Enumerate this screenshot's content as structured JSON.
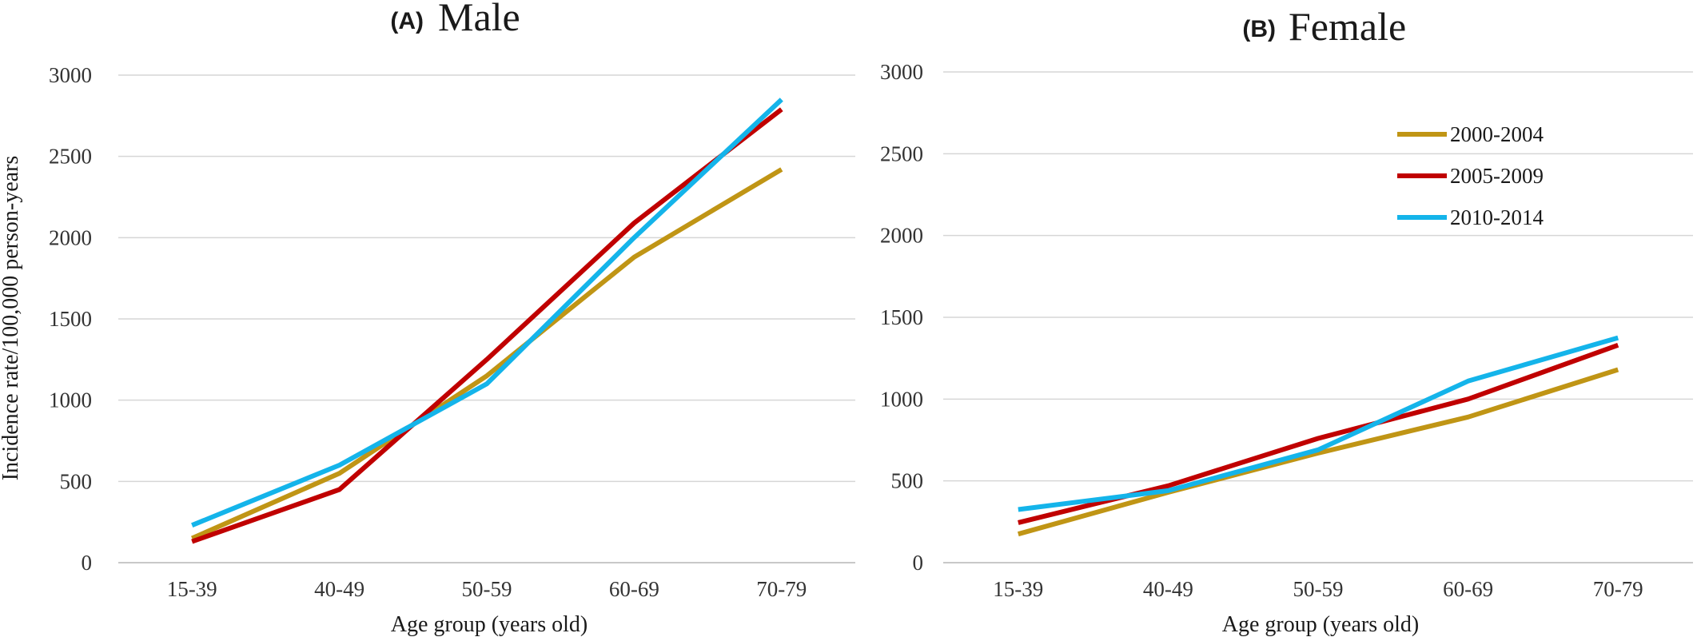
{
  "chart_data": [
    {
      "type": "line",
      "panel_letter": "(A)",
      "title": "Male",
      "xlabel": "Age group (years old)",
      "ylabel": "Incidence rate/100,000 person-years",
      "categories": [
        "15-39",
        "40-49",
        "50-59",
        "60-69",
        "70-79"
      ],
      "ylim": [
        0,
        3000
      ],
      "yticks": [
        0,
        500,
        1000,
        1500,
        2000,
        2500,
        3000
      ],
      "grid": true,
      "legend": "none",
      "series": [
        {
          "name": "2000-2004",
          "color": "#C09515",
          "values": [
            150,
            550,
            1150,
            1880,
            2420
          ]
        },
        {
          "name": "2005-2009",
          "color": "#C00000",
          "values": [
            130,
            450,
            1250,
            2090,
            2790
          ]
        },
        {
          "name": "2010-2014",
          "color": "#14B4EA",
          "values": [
            230,
            600,
            1100,
            2000,
            2850
          ]
        }
      ]
    },
    {
      "type": "line",
      "panel_letter": "(B)",
      "title": "Female",
      "xlabel": "Age group (years old)",
      "ylabel": "",
      "categories": [
        "15-39",
        "40-49",
        "50-59",
        "60-69",
        "70-79"
      ],
      "ylim": [
        0,
        3000
      ],
      "yticks": [
        0,
        500,
        1000,
        1500,
        2000,
        2500,
        3000
      ],
      "grid": true,
      "legend": "top-right",
      "series": [
        {
          "name": "2000-2004",
          "color": "#C09515",
          "values": [
            175,
            430,
            670,
            890,
            1180
          ]
        },
        {
          "name": "2005-2009",
          "color": "#C00000",
          "values": [
            245,
            470,
            760,
            1000,
            1330
          ]
        },
        {
          "name": "2010-2014",
          "color": "#14B4EA",
          "values": [
            325,
            440,
            690,
            1110,
            1375
          ]
        }
      ]
    }
  ]
}
